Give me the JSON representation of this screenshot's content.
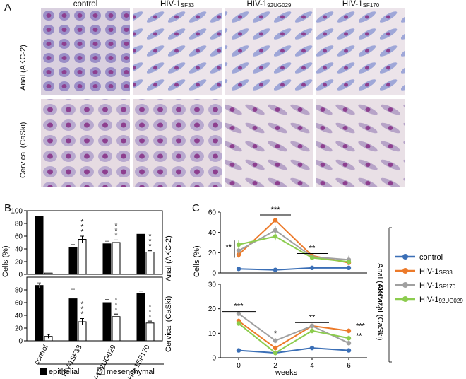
{
  "panelA": {
    "letter": "A",
    "columns": [
      {
        "main": "control",
        "sub": ""
      },
      {
        "main": "HIV-1",
        "sub": "SF33"
      },
      {
        "main": "HIV-1",
        "sub": "92UG029"
      },
      {
        "main": "HIV-1",
        "sub": "SF170"
      }
    ],
    "rows": [
      "Anal (AKC-2)",
      "Cervical (CaSki)"
    ]
  },
  "panelB": {
    "letter": "B",
    "ylabel": "Cells (%)",
    "row_labels": [
      "Anal (AKC-2)",
      "Cervical (CaSki)"
    ],
    "legend": {
      "epithelial": "epithelial",
      "mesenchymal": "mesenchymal"
    }
  },
  "panelC": {
    "letter": "C",
    "ylabel": "Cells (%)",
    "xlabel": "weeks",
    "row_labels": [
      "Anal (AKC-2)",
      "Cervical (CaSki)"
    ],
    "legend": [
      {
        "main": "control",
        "sub": ""
      },
      {
        "main": "HIV-1",
        "sub": "SF33"
      },
      {
        "main": "HIV-1",
        "sub": "SF170"
      },
      {
        "main": "HIV-1",
        "sub": "92UG029"
      }
    ]
  },
  "chart_data": [
    {
      "type": "bar",
      "panel": "B-top",
      "categories": [
        "control",
        "HIV-1SF33",
        "HIV-192UG029",
        "HIV-1SF170"
      ],
      "ylim": [
        0,
        100
      ],
      "yticks": [
        0,
        20,
        40,
        60,
        80,
        100
      ],
      "series": [
        {
          "name": "epithelial",
          "values": [
            91,
            42,
            48,
            63
          ],
          "errors": [
            0,
            5,
            4,
            2
          ]
        },
        {
          "name": "mesenchymal",
          "values": [
            2,
            55,
            50,
            35
          ],
          "errors": [
            0,
            5,
            4,
            2
          ]
        }
      ],
      "significance": [
        "",
        "***",
        "***",
        "***"
      ]
    },
    {
      "type": "bar",
      "panel": "B-bottom",
      "categories": [
        "control",
        "HIV-1SF33",
        "HIV-192UG029",
        "HIV-1SF170"
      ],
      "ylim": [
        0,
        100
      ],
      "yticks": [
        0,
        20,
        40,
        60,
        80
      ],
      "series": [
        {
          "name": "epithelial",
          "values": [
            87,
            66,
            60,
            74
          ],
          "errors": [
            4,
            15,
            5,
            4
          ]
        },
        {
          "name": "mesenchymal",
          "values": [
            7,
            30,
            38,
            28
          ],
          "errors": [
            3,
            5,
            4,
            3
          ]
        }
      ],
      "significance": [
        "",
        "***",
        "***",
        "***"
      ]
    },
    {
      "type": "line",
      "panel": "C-top",
      "x": [
        0,
        2,
        4,
        6
      ],
      "ylim": [
        0,
        60
      ],
      "yticks": [
        0,
        20,
        40,
        60
      ],
      "series": [
        {
          "name": "control",
          "color": "#3b6fb6",
          "values": [
            4,
            3,
            5,
            5
          ],
          "errors": [
            0.5,
            0.5,
            1,
            1
          ]
        },
        {
          "name": "HIV-1SF33",
          "color": "#ec7a2a",
          "values": [
            18,
            52,
            17,
            10
          ],
          "errors": [
            3,
            2,
            2,
            2
          ]
        },
        {
          "name": "HIV-1SF170",
          "color": "#a0a0a0",
          "values": [
            22,
            42,
            16,
            13
          ],
          "errors": [
            5,
            4,
            2,
            4
          ]
        },
        {
          "name": "HIV-192UG029",
          "color": "#8ccc4e",
          "values": [
            28,
            36,
            15,
            11
          ],
          "errors": [
            4,
            4,
            2,
            2
          ]
        }
      ],
      "significance": [
        {
          "x": 0,
          "label": "**"
        },
        {
          "x": 2,
          "label": "***"
        },
        {
          "x": 4,
          "label": "**"
        }
      ]
    },
    {
      "type": "line",
      "panel": "C-bottom",
      "x": [
        0,
        2,
        4,
        6
      ],
      "xlabel": "weeks",
      "ylim": [
        0,
        30
      ],
      "yticks": [
        0,
        10,
        20,
        30
      ],
      "xticks": [
        0,
        2,
        4,
        6
      ],
      "series": [
        {
          "name": "control",
          "color": "#3b6fb6",
          "values": [
            3,
            2,
            4,
            3
          ],
          "errors": [
            0.3,
            0.3,
            0.5,
            0.3
          ]
        },
        {
          "name": "HIV-1SF33",
          "color": "#ec7a2a",
          "values": [
            15,
            4,
            13,
            11
          ],
          "errors": [
            1,
            1,
            1,
            1
          ]
        },
        {
          "name": "HIV-1SF170",
          "color": "#a0a0a0",
          "values": [
            18,
            7,
            13,
            6
          ],
          "errors": [
            1,
            1,
            1,
            1
          ]
        },
        {
          "name": "HIV-192UG029",
          "color": "#8ccc4e",
          "values": [
            14,
            2,
            11,
            8
          ],
          "errors": [
            1,
            1,
            1,
            1
          ]
        }
      ],
      "significance": [
        {
          "x": 0,
          "label": "***"
        },
        {
          "x": 2,
          "label": "*"
        },
        {
          "x": 4,
          "label": "**"
        },
        {
          "x": 6,
          "label": "***"
        },
        {
          "x": 6,
          "label": "**"
        }
      ]
    }
  ]
}
